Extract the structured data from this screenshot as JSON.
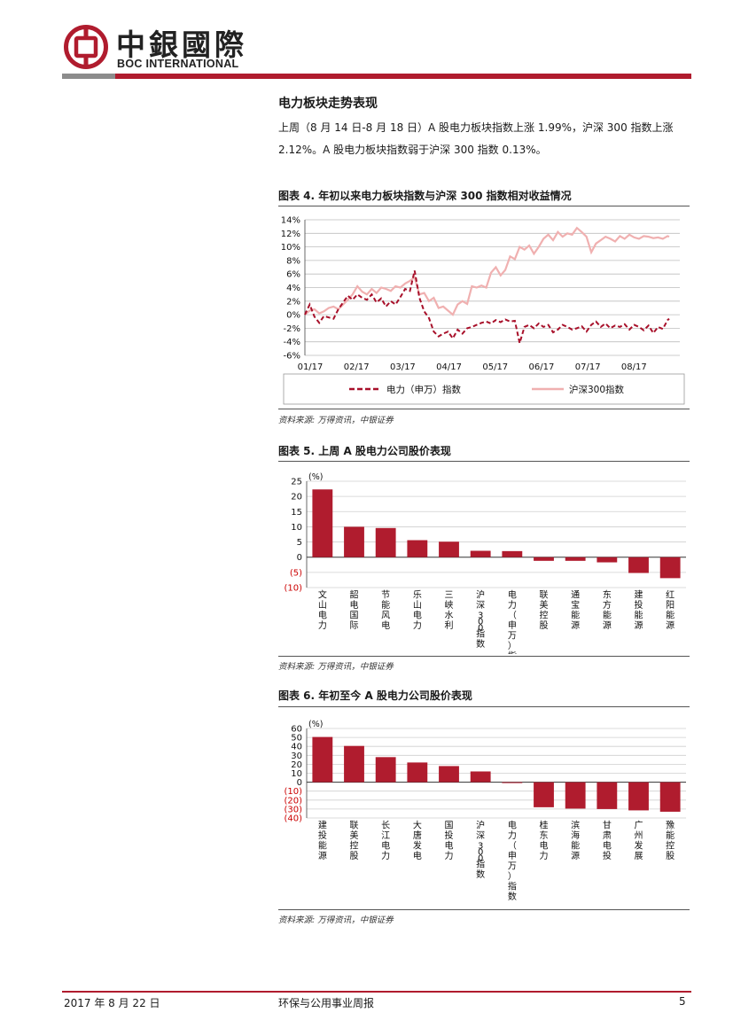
{
  "header": {
    "logo_cn": "中銀國際",
    "logo_en": "BOC INTERNATIONAL"
  },
  "section": {
    "title": "电力板块走势表现",
    "para_line1": "上周（8 月 14 日-8 月 18 日）A 股电力板块指数上涨 1.99%，沪深 300 指数上涨",
    "para_line2": "2.12%。A 股电力板块指数弱于沪深 300 指数 0.13%。"
  },
  "fig4": {
    "title": "图表 4. 年初以来电力板块指数与沪深 300 指数相对收益情况",
    "source": "资料来源: 万得资讯，中银证券"
  },
  "fig5": {
    "title": "图表 5. 上周 A 股电力公司股价表现",
    "source": "资料来源: 万得资讯，中银证券"
  },
  "fig6": {
    "title": "图表 6. 年初至今 A 股电力公司股价表现",
    "source": "资料来源: 万得资讯，中银证券"
  },
  "footer": {
    "date": "2017 年 8 月 22 日",
    "title": "环保与公用事业周报",
    "page": "5"
  },
  "colors": {
    "brand_red": "#b01c2e",
    "bar_red": "#b01c2e",
    "line_power": "#a8102a",
    "line_hs300": "#f0b0b0",
    "neg_tick": "#cc0000"
  },
  "chart_data": [
    {
      "type": "line",
      "x_ticks": [
        "01/17",
        "02/17",
        "03/17",
        "04/17",
        "05/17",
        "06/17",
        "07/17",
        "08/17"
      ],
      "y_ticks": [
        "14%",
        "12%",
        "10%",
        "8%",
        "6%",
        "4%",
        "2%",
        "0%",
        "-2%",
        "-4%",
        "-6%"
      ],
      "ylim": [
        -6,
        14
      ],
      "legend_position": "bottom",
      "series": [
        {
          "name": "电力（申万）指数",
          "style": "dashed",
          "color": "#a8102a",
          "x_day": [
            0,
            3,
            6,
            9,
            12,
            15,
            18,
            21,
            24,
            27,
            30,
            33,
            36,
            39,
            42,
            45,
            48,
            51,
            54,
            57,
            60,
            63,
            66,
            69,
            72,
            75,
            78,
            81,
            84,
            87,
            90,
            93,
            96,
            99,
            102,
            105,
            108,
            111,
            114,
            117,
            120,
            123,
            126,
            129,
            132,
            135,
            138,
            141,
            144,
            147,
            150,
            153,
            156,
            159,
            162,
            165,
            168,
            171,
            174,
            177,
            180,
            183,
            186,
            189,
            192,
            195,
            198,
            201,
            204,
            207,
            210,
            213,
            216,
            219,
            222,
            225,
            228,
            229
          ],
          "values": [
            0,
            1.5,
            -0.3,
            -1.2,
            -0.2,
            -0.4,
            -0.6,
            0.8,
            1.8,
            2.8,
            2.2,
            3.0,
            2.5,
            2.2,
            3.0,
            1.8,
            2.4,
            1.2,
            2.0,
            1.5,
            2.6,
            3.8,
            3.5,
            6.5,
            2.5,
            0.5,
            -0.5,
            -2.5,
            -3.2,
            -2.8,
            -2.5,
            -3.5,
            -2.2,
            -2.8,
            -2.0,
            -1.8,
            -1.5,
            -1.2,
            -1.0,
            -1.3,
            -0.8,
            -1.1,
            -0.7,
            -1.0,
            -0.9,
            -4.2,
            -1.8,
            -1.5,
            -2.0,
            -1.3,
            -1.8,
            -1.5,
            -2.6,
            -2.2,
            -1.5,
            -1.8,
            -2.2,
            -2.0,
            -1.7,
            -2.5,
            -1.5,
            -1.0,
            -1.8,
            -1.3,
            -2.0,
            -1.6,
            -1.8,
            -1.4,
            -2.2,
            -1.5,
            -1.8,
            -2.3,
            -1.6,
            -2.7,
            -1.8,
            -2.1,
            -0.8,
            -0.6
          ]
        },
        {
          "name": "沪深300指数",
          "style": "solid",
          "color": "#f0b0b0",
          "x_day": [
            0,
            3,
            6,
            9,
            12,
            15,
            18,
            21,
            24,
            27,
            30,
            33,
            36,
            39,
            42,
            45,
            48,
            51,
            54,
            57,
            60,
            63,
            66,
            69,
            72,
            75,
            78,
            81,
            84,
            87,
            90,
            93,
            96,
            99,
            102,
            105,
            108,
            111,
            114,
            117,
            120,
            123,
            126,
            129,
            132,
            135,
            138,
            141,
            144,
            147,
            150,
            153,
            156,
            159,
            162,
            165,
            168,
            171,
            174,
            177,
            180,
            183,
            186,
            189,
            192,
            195,
            198,
            201,
            204,
            207,
            210,
            213,
            216,
            219,
            222,
            225,
            228,
            229
          ],
          "values": [
            0,
            0.6,
            0.8,
            0.2,
            0.5,
            1.0,
            1.2,
            0.8,
            1.5,
            2.2,
            3.0,
            4.2,
            3.4,
            3.0,
            3.8,
            3.2,
            4.0,
            3.8,
            3.5,
            4.2,
            4.0,
            4.6,
            5.0,
            5.5,
            3.0,
            3.2,
            2.0,
            2.5,
            1.0,
            1.2,
            0.6,
            0.0,
            1.5,
            2.0,
            1.6,
            4.2,
            4.0,
            4.3,
            4.0,
            6.2,
            7.0,
            5.8,
            6.6,
            8.6,
            8.2,
            10.0,
            9.6,
            10.2,
            9.0,
            10.0,
            11.2,
            11.8,
            11.0,
            12.2,
            11.5,
            12.0,
            11.8,
            12.8,
            12.2,
            11.5,
            9.2,
            10.5,
            11.0,
            11.5,
            11.2,
            10.8,
            11.6,
            11.2,
            11.8,
            11.4,
            11.2,
            11.6,
            11.5,
            11.3,
            11.4,
            11.2,
            11.6,
            11.5
          ]
        }
      ]
    },
    {
      "type": "bar",
      "ylabel": "(%)",
      "y_ticks": [
        "25",
        "20",
        "15",
        "10",
        "5",
        "0",
        "(5)",
        "(10)"
      ],
      "ylim": [
        -10,
        25
      ],
      "categories": [
        "文山电力",
        "韶电国际",
        "节能风电",
        "乐山电力",
        "三峡水利",
        "沪深300指数",
        "电力（申万）指数",
        "联美控股",
        "通宝能源",
        "东方能源",
        "建投能源",
        "红阳能源"
      ],
      "values": [
        22.3,
        10.0,
        9.6,
        5.6,
        5.1,
        2.1,
        2.0,
        -1.2,
        -1.2,
        -1.7,
        -5.2,
        -6.9
      ]
    },
    {
      "type": "bar",
      "ylabel": "(%)",
      "y_ticks": [
        "60",
        "50",
        "40",
        "30",
        "20",
        "10",
        "0",
        "(10)",
        "(20)",
        "(30)",
        "(40)"
      ],
      "ylim": [
        -40,
        60
      ],
      "categories": [
        "建投能源",
        "联美控股",
        "长江电力",
        "大唐发电",
        "国投电力",
        "沪深300指数",
        "电力（申万）指数",
        "桂东电力",
        "滨海能源",
        "甘肃电投",
        "广州发展",
        "豫能控股"
      ],
      "values": [
        50.5,
        40.5,
        28.0,
        22.0,
        18.0,
        12.0,
        -0.5,
        -28.0,
        -29.5,
        -30.0,
        -31.5,
        -33.0
      ]
    }
  ]
}
